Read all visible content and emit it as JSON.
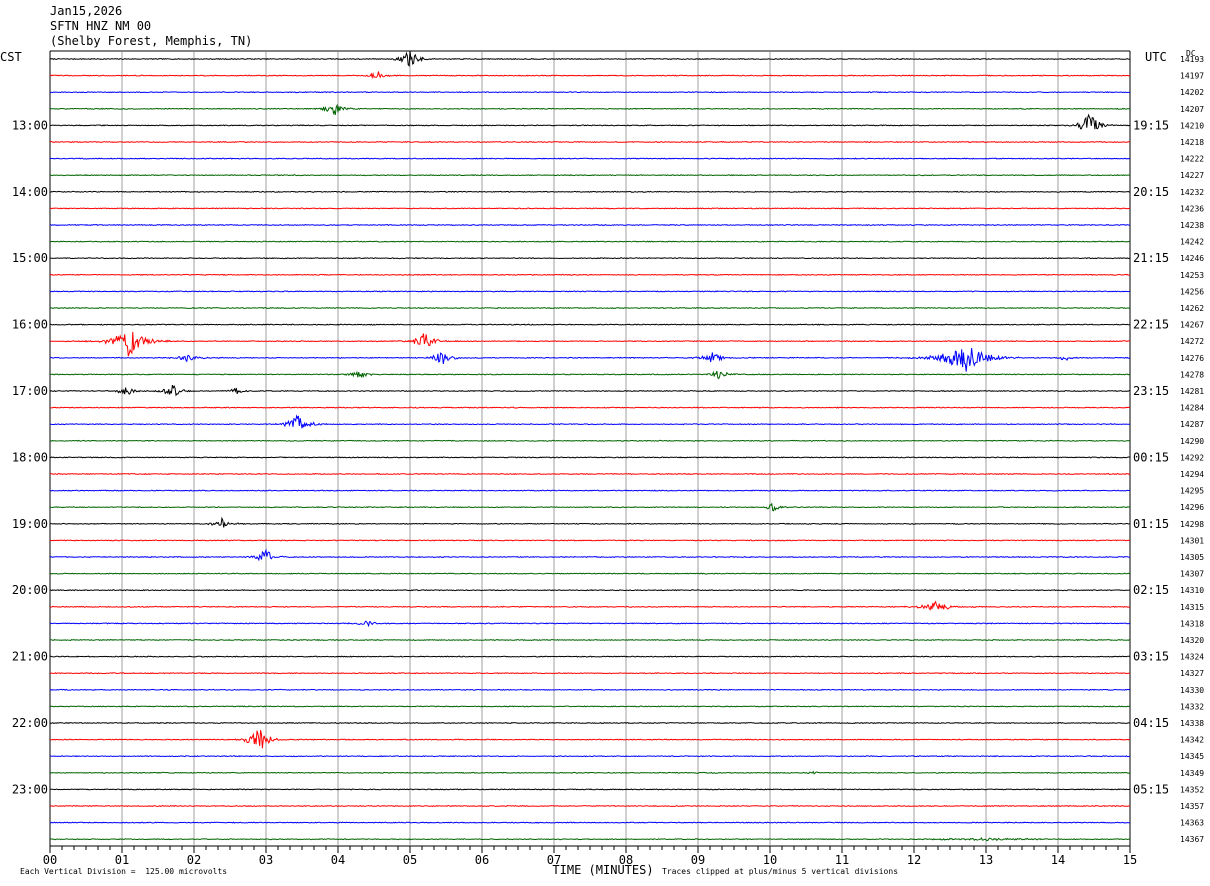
{
  "header": {
    "date": "Jan15,2026",
    "station": "SFTN HNZ NM 00",
    "location": "(Shelby Forest, Memphis, TN)"
  },
  "left_zone": "CST",
  "right_zone": "UTC",
  "dc_label": "DC",
  "footer": {
    "division_note": "Each Vertical Division =  125.00 microvolts",
    "clip_note": "Traces clipped at plus/minus 5 vertical divisions"
  },
  "colors": {
    "trace_cycle": [
      "#000000",
      "#ff0000",
      "#0000ff",
      "#006400"
    ],
    "grid": "#888888",
    "background": "#ffffff"
  },
  "chart_data": {
    "type": "line",
    "title": "Jan15,2026",
    "xlabel": "TIME (MINUTES)",
    "ylabel": "",
    "xlim": [
      0,
      15
    ],
    "x_ticks": [
      "00",
      "01",
      "02",
      "03",
      "04",
      "05",
      "06",
      "07",
      "08",
      "09",
      "10",
      "11",
      "12",
      "13",
      "14",
      "15"
    ],
    "trace_count": 48,
    "trace_minutes_each": 15,
    "left_hour_labels": [
      {
        "trace": 4,
        "text": "13:00"
      },
      {
        "trace": 8,
        "text": "14:00"
      },
      {
        "trace": 12,
        "text": "15:00"
      },
      {
        "trace": 16,
        "text": "16:00"
      },
      {
        "trace": 20,
        "text": "17:00"
      },
      {
        "trace": 24,
        "text": "18:00"
      },
      {
        "trace": 28,
        "text": "19:00"
      },
      {
        "trace": 32,
        "text": "20:00"
      },
      {
        "trace": 36,
        "text": "21:00"
      },
      {
        "trace": 40,
        "text": "22:00"
      },
      {
        "trace": 44,
        "text": "23:00"
      }
    ],
    "right_hour_labels": [
      {
        "trace": 4,
        "text": "19:15"
      },
      {
        "trace": 8,
        "text": "20:15"
      },
      {
        "trace": 12,
        "text": "21:15"
      },
      {
        "trace": 16,
        "text": "22:15"
      },
      {
        "trace": 20,
        "text": "23:15"
      },
      {
        "trace": 24,
        "text": "00:15"
      },
      {
        "trace": 28,
        "text": "01:15"
      },
      {
        "trace": 32,
        "text": "02:15"
      },
      {
        "trace": 36,
        "text": "03:15"
      },
      {
        "trace": 40,
        "text": "04:15"
      },
      {
        "trace": 44,
        "text": "05:15"
      }
    ],
    "dc_offsets": [
      "14193",
      "14197",
      "14202",
      "14207",
      "14210",
      "14218",
      "14222",
      "14227",
      "14232",
      "14236",
      "14238",
      "14242",
      "14246",
      "14253",
      "14256",
      "14262",
      "14267",
      "14272",
      "14276",
      "14278",
      "14281",
      "14284",
      "14287",
      "14290",
      "14292",
      "14294",
      "14295",
      "14296",
      "14298",
      "14301",
      "14305",
      "14307",
      "14310",
      "14315",
      "14318",
      "14320",
      "14324",
      "14327",
      "14330",
      "14332",
      "14338",
      "14342",
      "14345",
      "14349",
      "14352",
      "14357",
      "14363",
      "14367"
    ],
    "events": [
      {
        "trace": 0,
        "minute": 5.0,
        "amp": 3.0,
        "width": 0.25
      },
      {
        "trace": 1,
        "minute": 4.55,
        "amp": 1.6,
        "width": 0.2
      },
      {
        "trace": 3,
        "minute": 3.95,
        "amp": 2.2,
        "width": 0.25
      },
      {
        "trace": 4,
        "minute": 14.45,
        "amp": 5.0,
        "width": 0.25
      },
      {
        "trace": 17,
        "minute": 1.1,
        "amp": 5.0,
        "width": 0.45
      },
      {
        "trace": 17,
        "minute": 5.2,
        "amp": 2.6,
        "width": 0.3
      },
      {
        "trace": 18,
        "minute": 1.9,
        "amp": 1.0,
        "width": 0.4
      },
      {
        "trace": 18,
        "minute": 5.45,
        "amp": 2.6,
        "width": 0.25
      },
      {
        "trace": 18,
        "minute": 9.2,
        "amp": 1.8,
        "width": 0.3
      },
      {
        "trace": 18,
        "minute": 12.7,
        "amp": 5.0,
        "width": 0.6
      },
      {
        "trace": 18,
        "minute": 14.1,
        "amp": 1.0,
        "width": 0.2
      },
      {
        "trace": 19,
        "minute": 4.3,
        "amp": 1.4,
        "width": 0.25
      },
      {
        "trace": 19,
        "minute": 9.3,
        "amp": 1.8,
        "width": 0.25
      },
      {
        "trace": 20,
        "minute": 1.05,
        "amp": 1.5,
        "width": 0.25
      },
      {
        "trace": 20,
        "minute": 1.7,
        "amp": 2.2,
        "width": 0.25
      },
      {
        "trace": 20,
        "minute": 2.6,
        "amp": 1.2,
        "width": 0.2
      },
      {
        "trace": 22,
        "minute": 3.45,
        "amp": 3.2,
        "width": 0.3
      },
      {
        "trace": 27,
        "minute": 10.05,
        "amp": 1.5,
        "width": 0.2
      },
      {
        "trace": 28,
        "minute": 2.4,
        "amp": 1.8,
        "width": 0.25
      },
      {
        "trace": 30,
        "minute": 3.0,
        "amp": 2.6,
        "width": 0.25
      },
      {
        "trace": 33,
        "minute": 12.3,
        "amp": 1.8,
        "width": 0.4
      },
      {
        "trace": 34,
        "minute": 4.4,
        "amp": 0.8,
        "width": 0.3
      },
      {
        "trace": 41,
        "minute": 2.9,
        "amp": 5.0,
        "width": 0.25
      },
      {
        "trace": 43,
        "minute": 10.6,
        "amp": 0.5,
        "width": 0.15
      },
      {
        "trace": 47,
        "minute": 13.0,
        "amp": 0.4,
        "width": 1.5
      }
    ],
    "noise_level": 0.12
  }
}
